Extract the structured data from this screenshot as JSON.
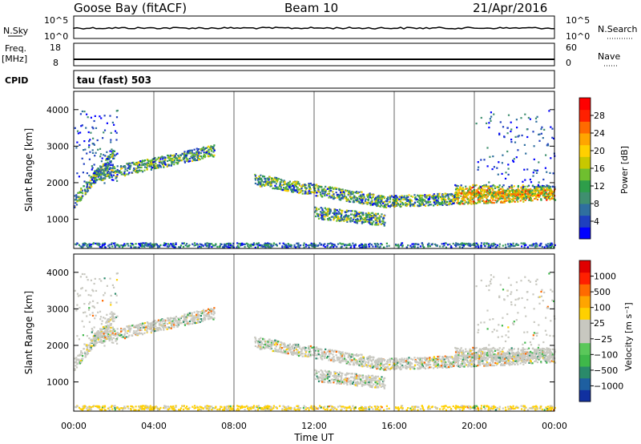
{
  "header": {
    "station": "Goose Bay (fitACF)",
    "beam": "Beam 10",
    "date": "21/Apr/2016"
  },
  "top_panels": {
    "nsky_label": "N.Sky",
    "nsky_ticks": [
      "10^5",
      "10^0"
    ],
    "nsearch_label": "N.Search",
    "nsearch_ticks": [
      "10^5",
      "10^0"
    ],
    "freq_label_1": "Freq.",
    "freq_label_2": "[MHz]",
    "freq_ticks": [
      "18",
      "8"
    ],
    "nave_label": "Nave",
    "nave_ticks": [
      "60",
      "0"
    ],
    "cpid_label": "CPID",
    "cpid_value": "tau (fast) 503"
  },
  "chart_data": [
    {
      "type": "heatmap",
      "panel": "power",
      "ylabel": "Slant Range [km]",
      "ylim": [
        200,
        4500
      ],
      "yticks": [
        "4000",
        "3000",
        "2000",
        "1000"
      ],
      "xlim": [
        0,
        24
      ],
      "colorbar": {
        "label": "Power [dB]",
        "ticks": [
          "28",
          "24",
          "20",
          "16",
          "12",
          "8",
          "4"
        ],
        "colors": [
          "#0000ff",
          "#1e3fbf",
          "#2f6f9f",
          "#3f8f6f",
          "#2e9e4a",
          "#6fbf2f",
          "#c8c800",
          "#ffd000",
          "#ffa500",
          "#ff6a00",
          "#ff2000",
          "#ff0000"
        ]
      },
      "echo_bands": [
        {
          "t_start": 0.0,
          "t_end": 2.0,
          "range_start": 1500,
          "range_end": 2800
        },
        {
          "t_start": 1.0,
          "t_end": 7.0,
          "range_start": 2200,
          "range_end": 2900
        },
        {
          "t_start": 9.0,
          "t_end": 15.5,
          "range_start": 2100,
          "range_end": 1500
        },
        {
          "t_start": 15.5,
          "t_end": 24.0,
          "range_start": 1500,
          "range_end": 1700
        },
        {
          "t_start": 12.0,
          "t_end": 15.5,
          "range_start": 1200,
          "range_end": 1000
        },
        {
          "t_start": 19.0,
          "t_end": 24.0,
          "range_start": 1800,
          "range_end": 1800
        }
      ],
      "ground_scatter_range": 250
    },
    {
      "type": "heatmap",
      "panel": "velocity",
      "ylabel": "Slant Range [km]",
      "ylim": [
        200,
        4500
      ],
      "yticks": [
        "4000",
        "3000",
        "2000",
        "1000"
      ],
      "xlim": [
        0,
        24
      ],
      "xticks": [
        "00:00",
        "04:00",
        "08:00",
        "12:00",
        "16:00",
        "20:00",
        "00:00"
      ],
      "xlabel": "Time UT",
      "colorbar": {
        "label": "Velocity [m s⁻¹]",
        "ticks": [
          "1000",
          "500",
          "100",
          "25",
          "−25",
          "−100",
          "−500",
          "−1000"
        ],
        "colors": [
          "#1030a0",
          "#1e5fa0",
          "#2a8a6a",
          "#3fb84a",
          "#5ac85a",
          "#c8c8c0",
          "#c8c8c0",
          "#ffd000",
          "#ffa500",
          "#ff6a00",
          "#ff2000",
          "#e00000"
        ]
      }
    }
  ]
}
